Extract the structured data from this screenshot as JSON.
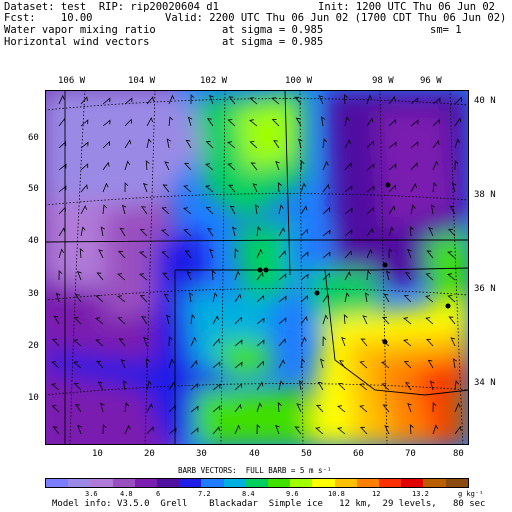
{
  "header": {
    "dataset": "Dataset: test  RIP: rip20020604 d1",
    "init": "Init: 1200 UTC Thu 06 Jun 02",
    "fcst": "Fcst:    10.00",
    "valid": "Valid: 2200 UTC Thu 06 Jun 02 (1700 CDT Thu 06 Jun 02)",
    "field1": "Water vapor mixing ratio",
    "sigma1": "at sigma = 0.985",
    "sm": "sm= 1",
    "field2": "Horizontal wind vectors",
    "sigma2": "at sigma = 0.985"
  },
  "lon_labels": [
    "106 W",
    "104 W",
    "102 W",
    "100 W",
    "98 W",
    "96 W"
  ],
  "lat_labels": [
    "40 N",
    "38 N",
    "36 N",
    "34 N"
  ],
  "x_ticks": [
    "10",
    "20",
    "30",
    "40",
    "50",
    "60",
    "70",
    "80"
  ],
  "y_ticks": [
    "60",
    "50",
    "40",
    "30",
    "20",
    "10"
  ],
  "barb_note": "BARB VECTORS:  FULL BARB = 5 m s⁻¹",
  "colorbar": {
    "labels": [
      "3.6",
      "4.8",
      "6",
      "7.2",
      "8.4",
      "9.6",
      "10.8",
      "12",
      "13.2"
    ],
    "units": "g kg⁻¹",
    "colors": [
      "#7c7cff",
      "#9a8ae6",
      "#b07ad8",
      "#9a4fc0",
      "#7a1fb0",
      "#5010a0",
      "#1e1ee6",
      "#1f7cff",
      "#00b0e0",
      "#00d060",
      "#40e000",
      "#a0ff00",
      "#ffff00",
      "#ffc000",
      "#ff8000",
      "#ff3000",
      "#e00000",
      "#b86000",
      "#8a4a10"
    ]
  },
  "footer": "Model info: V3.5.0  Grell    Blackadar  Simple ice   12 km,  29 levels,   80 sec"
}
